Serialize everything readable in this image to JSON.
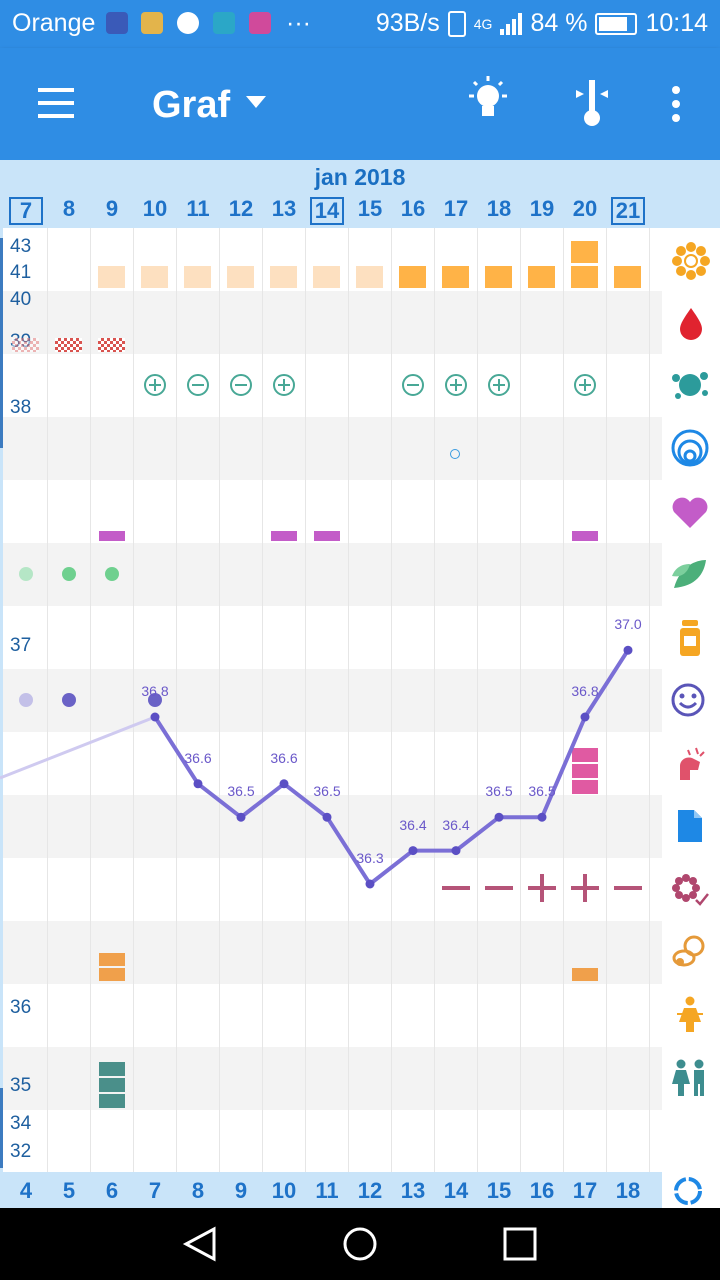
{
  "status_bar": {
    "carrier": "Orange",
    "more": "···",
    "speed": "93B/s",
    "network": "4G",
    "battery": "84 %",
    "time": "10:14"
  },
  "app_bar": {
    "title": "Graf",
    "icons": [
      "menu-icon",
      "dropdown-icon",
      "lightbulb-icon",
      "thermometer-icon",
      "overflow-icon"
    ]
  },
  "chart": {
    "month": "jan 2018",
    "dates": [
      "7",
      "8",
      "9",
      "10",
      "11",
      "12",
      "13",
      "14",
      "15",
      "16",
      "17",
      "18",
      "19",
      "20",
      "21"
    ],
    "boxed_dates": [
      "7",
      "14",
      "21"
    ],
    "cycle_days": [
      "4",
      "5",
      "6",
      "7",
      "8",
      "9",
      "10",
      "11",
      "12",
      "13",
      "14",
      "15",
      "16",
      "17",
      "18"
    ],
    "y_labels": [
      "43",
      "41",
      "40",
      "39",
      "38",
      "37",
      "36",
      "35",
      "34",
      "32"
    ]
  },
  "chart_data": {
    "type": "line",
    "x": [
      "10",
      "11",
      "12",
      "13",
      "14",
      "15",
      "16",
      "17",
      "18",
      "19",
      "20",
      "21"
    ],
    "values": [
      36.8,
      36.6,
      36.5,
      36.6,
      36.5,
      36.3,
      36.4,
      36.4,
      36.5,
      36.5,
      36.8,
      37.0
    ],
    "labels": [
      "36.8",
      "36.6",
      "36.5",
      "36.6",
      "36.5",
      "36.3",
      "36.4",
      "36.4",
      "36.5",
      "36.5",
      "36.8",
      "37.0"
    ],
    "series_color": "#7b6fd6"
  },
  "rail_icons": [
    "flower-icon",
    "drop-icon",
    "splash-icon",
    "rings-icon",
    "heart-icon",
    "leaf-icon",
    "medicine-bottle-icon",
    "smiley-icon",
    "pain-hand-icon",
    "document-icon",
    "flower-check-icon",
    "pacifier-icon",
    "woman-icon",
    "couple-icon",
    "sync-icon"
  ],
  "colors": {
    "primary": "#2f8de4",
    "header_bg": "#c9e4f9",
    "accent_blue": "#1e72c8",
    "line": "#7b6fd6"
  }
}
